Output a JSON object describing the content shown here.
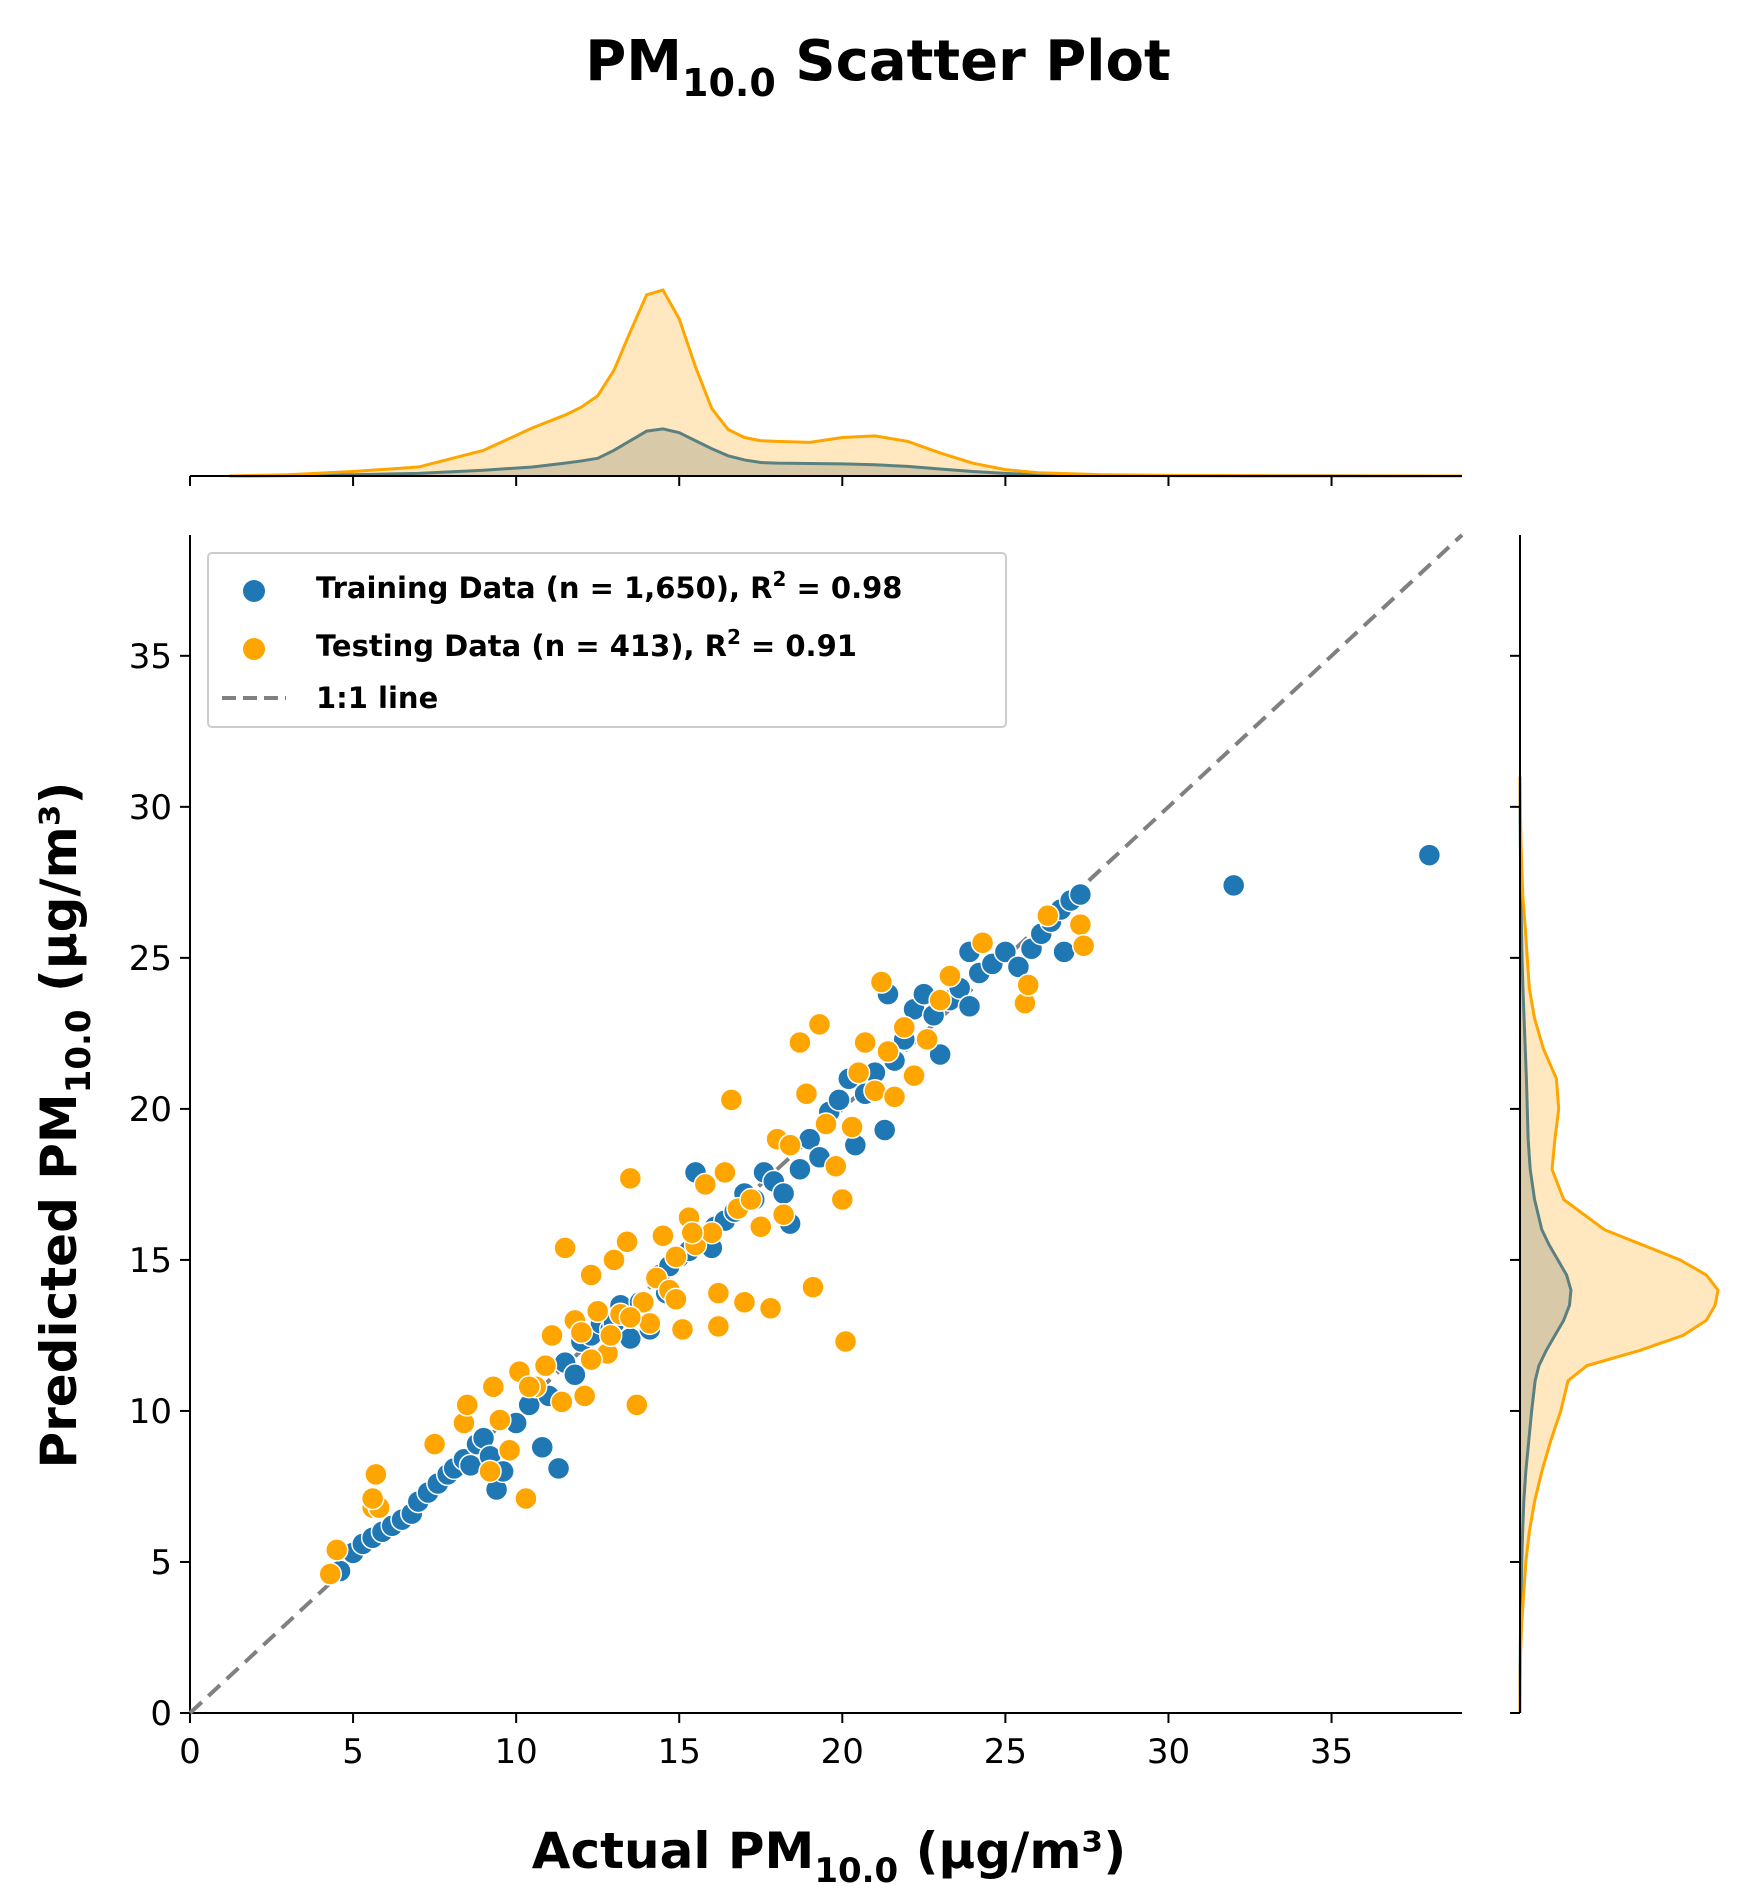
{
  "title": {
    "main": "PM",
    "sub": "10.0",
    "rest": " Scatter Plot"
  },
  "xlabel": {
    "main": "Actual PM",
    "sub": "10.0",
    "rest": " (µg/m³)"
  },
  "ylabel": {
    "main": "Predicted PM",
    "sub": "10.0",
    "rest": " (µg/m³)"
  },
  "legend": {
    "placement": "top-left",
    "training": {
      "text": "Training Data (n = 1,650), R",
      "sup": "2",
      "rest": " = 0.98"
    },
    "testing": {
      "text": "Testing Data (n = 413), R",
      "sup": "2",
      "rest": " = 0.91"
    },
    "line": {
      "text": "1:1 line"
    }
  },
  "colors": {
    "training": "#1f77b4",
    "testing": "#ffa500",
    "identity_line": "#808080",
    "kde_overlap": "#cfcbaa"
  },
  "chart_data": {
    "type": "scatter",
    "xlim": [
      0,
      39
    ],
    "ylim": [
      0,
      39
    ],
    "xticks": [
      0,
      5,
      10,
      15,
      20,
      25,
      30,
      35
    ],
    "yticks": [
      0,
      5,
      10,
      15,
      20,
      25,
      30,
      35
    ],
    "grid": false,
    "identity_line": true,
    "series": [
      {
        "name": "Training Data (n = 1,650), R² = 0.98",
        "color": "#1f77b4",
        "points": [
          [
            4.6,
            4.7
          ],
          [
            5.0,
            5.3
          ],
          [
            5.3,
            5.6
          ],
          [
            5.6,
            5.8
          ],
          [
            5.9,
            6.0
          ],
          [
            6.2,
            6.2
          ],
          [
            6.5,
            6.4
          ],
          [
            6.8,
            6.6
          ],
          [
            7.0,
            7.0
          ],
          [
            7.3,
            7.3
          ],
          [
            7.6,
            7.6
          ],
          [
            7.9,
            7.9
          ],
          [
            8.1,
            8.1
          ],
          [
            8.4,
            8.4
          ],
          [
            8.6,
            8.2
          ],
          [
            8.8,
            8.9
          ],
          [
            9.0,
            9.1
          ],
          [
            9.2,
            8.5
          ],
          [
            9.4,
            7.4
          ],
          [
            9.6,
            8.0
          ],
          [
            10.0,
            9.6
          ],
          [
            10.4,
            10.2
          ],
          [
            10.8,
            8.8
          ],
          [
            11.0,
            10.5
          ],
          [
            11.3,
            8.1
          ],
          [
            11.5,
            11.6
          ],
          [
            11.8,
            11.2
          ],
          [
            12.0,
            12.3
          ],
          [
            12.3,
            12.5
          ],
          [
            12.6,
            12.9
          ],
          [
            12.9,
            12.7
          ],
          [
            13.2,
            13.5
          ],
          [
            13.5,
            12.4
          ],
          [
            13.8,
            13.6
          ],
          [
            14.1,
            12.7
          ],
          [
            14.4,
            14.5
          ],
          [
            14.7,
            14.8
          ],
          [
            15.0,
            15.1
          ],
          [
            15.3,
            15.3
          ],
          [
            15.5,
            17.9
          ],
          [
            15.8,
            15.8
          ],
          [
            16.1,
            16.1
          ],
          [
            16.4,
            16.3
          ],
          [
            16.7,
            16.6
          ],
          [
            17.0,
            17.2
          ],
          [
            17.3,
            17.0
          ],
          [
            17.6,
            17.9
          ],
          [
            17.9,
            17.6
          ],
          [
            18.2,
            17.2
          ],
          [
            18.4,
            16.2
          ],
          [
            18.7,
            18.0
          ],
          [
            19.0,
            19.0
          ],
          [
            19.3,
            18.4
          ],
          [
            19.6,
            19.9
          ],
          [
            19.9,
            20.3
          ],
          [
            20.2,
            21.0
          ],
          [
            20.4,
            18.8
          ],
          [
            20.7,
            20.5
          ],
          [
            21.0,
            21.2
          ],
          [
            21.3,
            19.3
          ],
          [
            21.6,
            21.6
          ],
          [
            21.9,
            22.3
          ],
          [
            22.2,
            23.3
          ],
          [
            22.5,
            23.8
          ],
          [
            22.8,
            23.1
          ],
          [
            23.0,
            21.8
          ],
          [
            23.3,
            23.6
          ],
          [
            23.6,
            24.0
          ],
          [
            23.9,
            23.4
          ],
          [
            24.2,
            24.5
          ],
          [
            24.6,
            24.8
          ],
          [
            25.0,
            25.2
          ],
          [
            25.4,
            24.7
          ],
          [
            25.8,
            25.3
          ],
          [
            26.1,
            25.8
          ],
          [
            26.4,
            26.2
          ],
          [
            26.7,
            26.6
          ],
          [
            27.0,
            26.9
          ],
          [
            27.3,
            27.1
          ],
          [
            26.8,
            25.2
          ],
          [
            23.9,
            25.2
          ],
          [
            21.4,
            23.8
          ],
          [
            16.0,
            15.4
          ],
          [
            13.0,
            12.9
          ],
          [
            14.6,
            13.9
          ],
          [
            32.0,
            27.4
          ],
          [
            38.0,
            28.4
          ]
        ]
      },
      {
        "name": "Testing Data (n = 413), R² = 0.91",
        "color": "#ffa500",
        "points": [
          [
            4.3,
            4.6
          ],
          [
            4.5,
            5.4
          ],
          [
            5.6,
            6.8
          ],
          [
            5.7,
            7.9
          ],
          [
            5.8,
            6.8
          ],
          [
            5.6,
            7.1
          ],
          [
            7.5,
            8.9
          ],
          [
            8.4,
            9.6
          ],
          [
            8.5,
            10.2
          ],
          [
            9.2,
            8.0
          ],
          [
            9.3,
            10.8
          ],
          [
            9.5,
            9.7
          ],
          [
            9.8,
            8.7
          ],
          [
            10.1,
            11.3
          ],
          [
            10.3,
            7.1
          ],
          [
            10.6,
            10.8
          ],
          [
            10.9,
            11.5
          ],
          [
            11.1,
            12.5
          ],
          [
            11.4,
            10.3
          ],
          [
            11.5,
            15.4
          ],
          [
            11.8,
            13.0
          ],
          [
            12.0,
            12.6
          ],
          [
            12.1,
            10.5
          ],
          [
            12.3,
            14.5
          ],
          [
            12.5,
            13.3
          ],
          [
            12.8,
            11.9
          ],
          [
            13.0,
            15.0
          ],
          [
            13.2,
            13.2
          ],
          [
            13.4,
            15.6
          ],
          [
            13.5,
            17.7
          ],
          [
            13.7,
            10.2
          ],
          [
            13.9,
            13.6
          ],
          [
            14.1,
            12.9
          ],
          [
            14.3,
            14.4
          ],
          [
            14.5,
            15.8
          ],
          [
            14.7,
            14.0
          ],
          [
            14.9,
            13.7
          ],
          [
            15.1,
            12.7
          ],
          [
            15.3,
            16.4
          ],
          [
            15.5,
            15.5
          ],
          [
            15.8,
            17.5
          ],
          [
            16.0,
            15.9
          ],
          [
            16.2,
            13.9
          ],
          [
            16.4,
            17.9
          ],
          [
            16.6,
            20.3
          ],
          [
            16.8,
            16.7
          ],
          [
            17.0,
            13.6
          ],
          [
            17.2,
            17.0
          ],
          [
            17.5,
            16.1
          ],
          [
            17.8,
            13.4
          ],
          [
            18.0,
            19.0
          ],
          [
            18.2,
            16.5
          ],
          [
            18.4,
            18.8
          ],
          [
            18.7,
            22.2
          ],
          [
            18.9,
            20.5
          ],
          [
            19.1,
            14.1
          ],
          [
            19.3,
            22.8
          ],
          [
            19.5,
            19.5
          ],
          [
            19.8,
            18.1
          ],
          [
            20.1,
            12.3
          ],
          [
            20.3,
            19.4
          ],
          [
            20.5,
            21.2
          ],
          [
            20.7,
            22.2
          ],
          [
            21.0,
            20.6
          ],
          [
            21.2,
            24.2
          ],
          [
            21.4,
            21.9
          ],
          [
            21.6,
            20.4
          ],
          [
            21.9,
            22.7
          ],
          [
            22.2,
            21.1
          ],
          [
            22.6,
            22.3
          ],
          [
            23.0,
            23.6
          ],
          [
            23.3,
            24.4
          ],
          [
            24.3,
            25.5
          ],
          [
            25.6,
            23.5
          ],
          [
            25.7,
            24.1
          ],
          [
            26.3,
            26.4
          ],
          [
            27.3,
            26.1
          ],
          [
            27.4,
            25.4
          ],
          [
            20.0,
            17.0
          ],
          [
            16.2,
            12.8
          ],
          [
            15.4,
            15.9
          ],
          [
            14.9,
            15.1
          ],
          [
            13.5,
            13.1
          ],
          [
            12.9,
            12.5
          ],
          [
            12.3,
            11.7
          ],
          [
            10.4,
            10.8
          ]
        ]
      }
    ],
    "marginal_x": {
      "x": [
        1.2,
        3.0,
        5.0,
        7.0,
        9.0,
        10.5,
        11.5,
        12.0,
        12.5,
        13.0,
        13.5,
        14.0,
        14.5,
        15.0,
        15.5,
        16.0,
        16.5,
        17.0,
        17.5,
        18.0,
        19.0,
        20.0,
        21.0,
        22.0,
        23.0,
        24.0,
        25.0,
        26.0,
        28.0,
        30.0,
        33.0,
        35.0,
        39.0
      ],
      "testing": [
        0.0,
        0.004,
        0.014,
        0.028,
        0.08,
        0.15,
        0.19,
        0.215,
        0.25,
        0.33,
        0.45,
        0.565,
        0.58,
        0.49,
        0.34,
        0.21,
        0.145,
        0.12,
        0.11,
        0.108,
        0.105,
        0.12,
        0.125,
        0.108,
        0.072,
        0.04,
        0.02,
        0.01,
        0.004,
        0.002,
        0.001,
        0.0005,
        0.0
      ],
      "training": [
        0.0,
        0.001,
        0.004,
        0.008,
        0.018,
        0.028,
        0.04,
        0.047,
        0.055,
        0.08,
        0.11,
        0.14,
        0.147,
        0.135,
        0.11,
        0.085,
        0.063,
        0.05,
        0.042,
        0.04,
        0.039,
        0.038,
        0.035,
        0.03,
        0.022,
        0.014,
        0.008,
        0.004,
        0.002,
        0.001,
        0.0005,
        0.0002,
        0.0
      ]
    },
    "marginal_y": {
      "y": [
        0.0,
        1.0,
        2.0,
        3.0,
        4.0,
        5.0,
        6.0,
        7.0,
        8.0,
        9.0,
        10.0,
        11.0,
        11.5,
        12.0,
        12.5,
        13.0,
        13.5,
        14.0,
        14.5,
        15.0,
        15.5,
        16.0,
        17.0,
        18.0,
        19.0,
        20.0,
        21.0,
        22.0,
        23.0,
        24.0,
        25.0,
        26.0,
        27.0,
        28.0,
        29.0,
        30.0,
        31.0
      ],
      "testing": [
        0.0,
        0.0005,
        0.002,
        0.006,
        0.013,
        0.02,
        0.032,
        0.05,
        0.075,
        0.105,
        0.14,
        0.165,
        0.23,
        0.41,
        0.56,
        0.64,
        0.67,
        0.68,
        0.64,
        0.55,
        0.42,
        0.29,
        0.15,
        0.11,
        0.12,
        0.133,
        0.125,
        0.08,
        0.05,
        0.032,
        0.025,
        0.018,
        0.01,
        0.006,
        0.003,
        0.001,
        0.0
      ],
      "training": [
        0.0,
        0.0002,
        0.001,
        0.002,
        0.004,
        0.006,
        0.009,
        0.013,
        0.02,
        0.03,
        0.04,
        0.052,
        0.065,
        0.09,
        0.12,
        0.15,
        0.17,
        0.175,
        0.16,
        0.13,
        0.1,
        0.075,
        0.05,
        0.035,
        0.028,
        0.025,
        0.022,
        0.018,
        0.014,
        0.01,
        0.007,
        0.005,
        0.003,
        0.002,
        0.001,
        0.0005,
        0.0
      ]
    }
  }
}
